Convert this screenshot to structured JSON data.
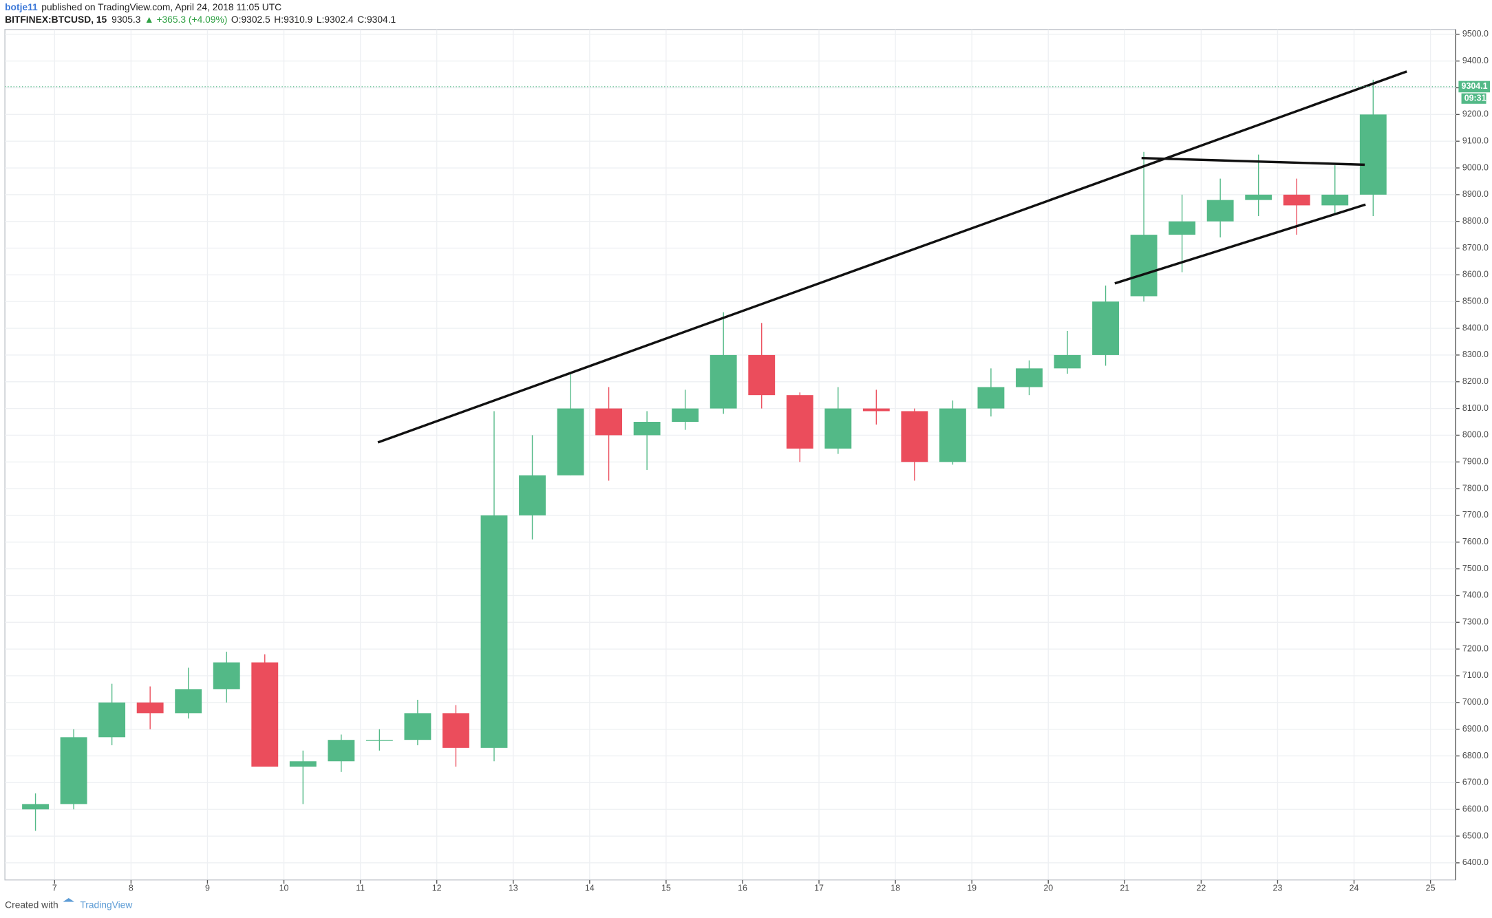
{
  "header": {
    "author": "botje11",
    "published": "published on TradingView.com, April 24, 2018 11:05 UTC",
    "symbol": "BITFINEX:BTCUSD, 15",
    "last": "9305.3",
    "change": "▲ +365.3 (+4.09%)",
    "open": "O:9302.5",
    "high": "H:9310.9",
    "low": "L:9302.4",
    "close": "C:9304.1"
  },
  "footer": {
    "created": "Created with",
    "brand": "TradingView"
  },
  "chart_data": {
    "type": "candlestick",
    "x": [
      6.75,
      7.25,
      7.75,
      8.25,
      8.75,
      9.25,
      9.75,
      10.25,
      10.75,
      11.25,
      11.75,
      12.25,
      12.75,
      13.25,
      13.75,
      14.25,
      14.75,
      15.25,
      15.75,
      16.25,
      16.75,
      17.25,
      17.75,
      18.25,
      18.75,
      19.25,
      19.75,
      20.25,
      20.75,
      21.25,
      21.75,
      22.25,
      22.75,
      23.25,
      23.75,
      24.25
    ],
    "open": [
      6600,
      6620,
      6870,
      7000,
      6960,
      7050,
      7150,
      6760,
      6780,
      6860,
      6860,
      6960,
      6830,
      7700,
      7850,
      8100,
      8000,
      8050,
      8100,
      8300,
      8150,
      7950,
      8100,
      8090,
      7900,
      8100,
      8180,
      8250,
      8300,
      8520,
      8750,
      8800,
      8880,
      8900,
      8860,
      8900
    ],
    "high": [
      6660,
      6900,
      7070,
      7060,
      7130,
      7190,
      7180,
      6820,
      6880,
      6900,
      7010,
      6990,
      8090,
      8000,
      8230,
      8180,
      8090,
      8170,
      8460,
      8420,
      8160,
      8180,
      8170,
      8100,
      8130,
      8250,
      8280,
      8390,
      8560,
      9060,
      8900,
      8960,
      9050,
      8960,
      9010,
      9330
    ],
    "low": [
      6520,
      6600,
      6840,
      6900,
      6940,
      7000,
      6780,
      6620,
      6740,
      6820,
      6840,
      6760,
      6780,
      7610,
      7850,
      7830,
      7870,
      8020,
      8080,
      8100,
      7900,
      7930,
      8040,
      7830,
      7890,
      8070,
      8150,
      8230,
      8260,
      8500,
      8610,
      8740,
      8820,
      8750,
      8830,
      8820
    ],
    "close": [
      6620,
      6870,
      7000,
      6960,
      7050,
      7150,
      6760,
      6780,
      6860,
      6860,
      6960,
      6830,
      7700,
      7850,
      8100,
      8000,
      8050,
      8100,
      8300,
      8150,
      7950,
      8100,
      8090,
      7900,
      8100,
      8180,
      8250,
      8300,
      8500,
      8750,
      8800,
      8880,
      8900,
      8860,
      8900,
      9200
    ],
    "up_color": "#53b987",
    "down_color": "#eb4d5c",
    "xlim": [
      6.35,
      25.33
    ],
    "xticks": [
      7,
      8,
      9,
      10,
      11,
      12,
      13,
      14,
      15,
      16,
      17,
      18,
      19,
      20,
      21,
      22,
      23,
      24,
      25
    ],
    "ylim": [
      6336,
      9518
    ],
    "yticks": [
      {
        "value": 6400,
        "label": "6400.0"
      },
      {
        "value": 6500,
        "label": "6500.0"
      },
      {
        "value": 6600,
        "label": "6600.0"
      },
      {
        "value": 6700,
        "label": "6700.0"
      },
      {
        "value": 6800,
        "label": "6800.0"
      },
      {
        "value": 6900,
        "label": "6900.0"
      },
      {
        "value": 7000,
        "label": "7000.0"
      },
      {
        "value": 7100,
        "label": "7100.0"
      },
      {
        "value": 7200,
        "label": "7200.0"
      },
      {
        "value": 7300,
        "label": "7300.0"
      },
      {
        "value": 7400,
        "label": "7400.0"
      },
      {
        "value": 7500,
        "label": "7500.0"
      },
      {
        "value": 7600,
        "label": "7600.0"
      },
      {
        "value": 7700,
        "label": "7700.0"
      },
      {
        "value": 7800,
        "label": "7800.0"
      },
      {
        "value": 7900,
        "label": "7900.0"
      },
      {
        "value": 8000,
        "label": "8000.0"
      },
      {
        "value": 8100,
        "label": "8100.0"
      },
      {
        "value": 8200,
        "label": "8200.0"
      },
      {
        "value": 8300,
        "label": "8300.0"
      },
      {
        "value": 8400,
        "label": "8400.0"
      },
      {
        "value": 8500,
        "label": "8500.0"
      },
      {
        "value": 8600,
        "label": "8600.0"
      },
      {
        "value": 8700,
        "label": "8700.0"
      },
      {
        "value": 8800,
        "label": "8800.0"
      },
      {
        "value": 8900,
        "label": "8900.0"
      },
      {
        "value": 9000,
        "label": "9000.0"
      },
      {
        "value": 9100,
        "label": "9100.0"
      },
      {
        "value": 9200,
        "label": "9200.0"
      },
      {
        "value": 9300,
        "label": "9300.0"
      },
      {
        "value": 9400,
        "label": "9400.0"
      },
      {
        "value": 9500,
        "label": "9500.0"
      }
    ],
    "grid": true,
    "last_price": 9304.1,
    "countdown": "09:31",
    "trend_lines": [
      {
        "x": [
          11.23,
          24.69
        ],
        "y": [
          7973,
          9361
        ]
      },
      {
        "x": [
          21.22,
          24.14
        ],
        "y": [
          9037,
          9012
        ]
      },
      {
        "x": [
          20.87,
          24.15
        ],
        "y": [
          8568,
          8863
        ]
      }
    ]
  }
}
